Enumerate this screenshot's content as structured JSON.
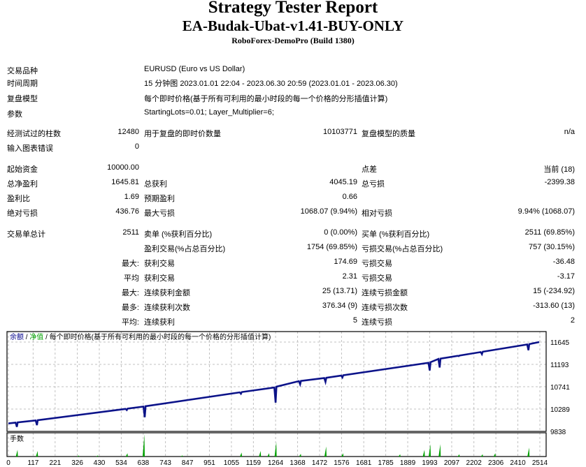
{
  "header": {
    "title": "Strategy Tester Report",
    "ea_name": "EA-Budak-Ubat-v1.41-BUY-ONLY",
    "server": "RoboForex-DemoPro (Build 1380)"
  },
  "info": [
    {
      "label": "交易品种",
      "value": "EURUSD (Euro vs US Dollar)"
    },
    {
      "label": "时间周期",
      "value": "15 分钟图 2023.01.01 22:04 - 2023.06.30 20:59 (2023.01.01 - 2023.06.30)"
    },
    {
      "label": "复盘模型",
      "value": "每个即时价格(基于所有可利用的最小时段的每一个价格的分形插值计算)"
    },
    {
      "label": "参数",
      "value": "StartingLots=0.01; Layer_Multiplier=6;"
    }
  ],
  "stats": [
    {
      "l1": "经测试过的柱数",
      "v1": "12480",
      "l2": "用于复盘的即时价数量",
      "v2": "10103771",
      "l3": "复盘模型的质量",
      "v3": "n/a"
    },
    {
      "l1": "输入图表错误",
      "v1": "0",
      "l2": "",
      "v2": "",
      "l3": "",
      "v3": ""
    },
    {
      "l1": "起始资金",
      "v1": "10000.00",
      "l2": "",
      "v2": "",
      "l3": "点差",
      "v3": "当前 (18)"
    },
    {
      "l1": "总净盈利",
      "v1": "1645.81",
      "l2": "总获利",
      "v2": "4045.19",
      "l3": "总亏损",
      "v3": "-2399.38"
    },
    {
      "l1": "盈利比",
      "v1": "1.69",
      "l2": "预期盈利",
      "v2": "0.66",
      "l3": "",
      "v3": ""
    },
    {
      "l1": "绝对亏损",
      "v1": "436.76",
      "l2": "最大亏损",
      "v2": "1068.07 (9.94%)",
      "l3": "相对亏损",
      "v3": "9.94% (1068.07)"
    },
    {
      "l1": "交易单总计",
      "v1": "2511",
      "l2": "卖单 (%获利百分比)",
      "v2": "0 (0.00%)",
      "l3": "买单 (%获利百分比)",
      "v3": "2511 (69.85%)"
    },
    {
      "l1": "",
      "v1": "",
      "l2": "盈利交易(%占总百分比)",
      "v2": "1754 (69.85%)",
      "l3": "亏损交易(%占总百分比)",
      "v3": "757 (30.15%)"
    },
    {
      "l1": "",
      "v1": "最大:",
      "l2": "获利交易",
      "v2": "174.69",
      "l3": "亏损交易",
      "v3": "-36.48"
    },
    {
      "l1": "",
      "v1": "平均",
      "l2": "获利交易",
      "v2": "2.31",
      "l3": "亏损交易",
      "v3": "-3.17"
    },
    {
      "l1": "",
      "v1": "最大:",
      "l2": "连续获利金额",
      "v2": "25 (13.71)",
      "l3": "连续亏损金额",
      "v3": "15 (-234.92)"
    },
    {
      "l1": "",
      "v1": "最多:",
      "l2": "连续获利次数",
      "v2": "376.34 (9)",
      "l3": "连续亏损次数",
      "v3": "-313.60 (13)"
    },
    {
      "l1": "",
      "v1": "平均:",
      "l2": "连续获利",
      "v2": "5",
      "l3": "连续亏损",
      "v3": "2"
    }
  ],
  "chart_data": {
    "type": "line",
    "legend": {
      "balance": "余额",
      "sep": " / ",
      "equity": "净值",
      "desc": " / 每个即时价格(基于所有可利用的最小时段的每一个价格的分形插值计算)"
    },
    "volume_label": "手数",
    "colors": {
      "balance": "#00008b",
      "equity": "#00a000",
      "volume": "#00a000",
      "grid": "#c0c0c0"
    },
    "ylim": [
      9838,
      11645
    ],
    "yticks": [
      "11645",
      "11193",
      "10741",
      "10289",
      "9838"
    ],
    "xticks": [
      "0",
      "117",
      "221",
      "326",
      "430",
      "534",
      "638",
      "743",
      "847",
      "951",
      "1055",
      "1159",
      "1264",
      "1368",
      "1472",
      "1576",
      "1681",
      "1785",
      "1889",
      "1993",
      "2097",
      "2202",
      "2306",
      "2410",
      "2514"
    ],
    "xlim": [
      0,
      2514
    ],
    "balance": [
      [
        0,
        10000
      ],
      [
        130,
        10060
      ],
      [
        640,
        10340
      ],
      [
        700,
        10390
      ],
      [
        1264,
        10730
      ],
      [
        1290,
        10810
      ],
      [
        1500,
        10920
      ],
      [
        1993,
        11230
      ],
      [
        2030,
        11300
      ],
      [
        2460,
        11600
      ],
      [
        2511,
        11645
      ]
    ],
    "equity_dips": [
      [
        40,
        9930
      ],
      [
        135,
        9965
      ],
      [
        560,
        10270
      ],
      [
        645,
        10125
      ],
      [
        1100,
        10600
      ],
      [
        1264,
        10420
      ],
      [
        1380,
        10790
      ],
      [
        1500,
        10840
      ],
      [
        1580,
        10930
      ],
      [
        1993,
        11070
      ],
      [
        2040,
        11130
      ],
      [
        2130,
        11360
      ],
      [
        2240,
        11400
      ],
      [
        2460,
        11480
      ]
    ],
    "volume": [
      [
        40,
        0.3
      ],
      [
        135,
        0.25
      ],
      [
        330,
        0.05
      ],
      [
        420,
        0.05
      ],
      [
        560,
        0.15
      ],
      [
        640,
        1.0
      ],
      [
        820,
        0.05
      ],
      [
        1100,
        0.18
      ],
      [
        1190,
        0.25
      ],
      [
        1264,
        0.65
      ],
      [
        1230,
        0.15
      ],
      [
        1380,
        0.12
      ],
      [
        1500,
        0.45
      ],
      [
        1580,
        0.15
      ],
      [
        1850,
        0.1
      ],
      [
        1965,
        0.3
      ],
      [
        1993,
        0.55
      ],
      [
        2040,
        0.55
      ],
      [
        2130,
        0.1
      ],
      [
        2240,
        0.1
      ],
      [
        2300,
        0.15
      ],
      [
        2460,
        0.4
      ]
    ]
  }
}
